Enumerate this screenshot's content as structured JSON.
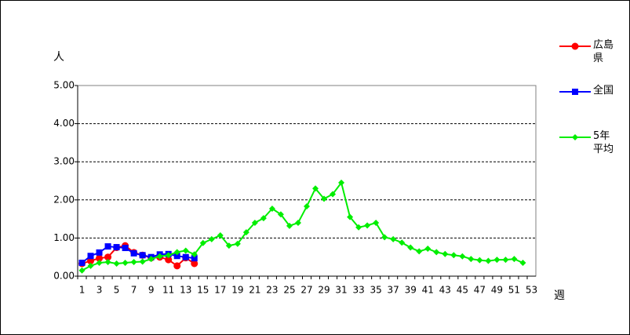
{
  "chart_data": {
    "type": "line",
    "y_label": "人",
    "x_label": "週",
    "categories": [
      1,
      null,
      3,
      null,
      5,
      null,
      7,
      null,
      9,
      null,
      11,
      null,
      13,
      null,
      15,
      null,
      17,
      null,
      19,
      null,
      21,
      null,
      23,
      null,
      25,
      null,
      27,
      null,
      29,
      null,
      31,
      null,
      33,
      null,
      35,
      null,
      37,
      null,
      39,
      null,
      41,
      null,
      43,
      null,
      45,
      null,
      47,
      null,
      49,
      null,
      51,
      null,
      53
    ],
    "series": [
      {
        "name": "広島県",
        "color": "#ff0000",
        "marker": "circle",
        "values": [
          0.33,
          0.4,
          0.47,
          0.5,
          0.75,
          0.8,
          0.62,
          0.55,
          0.48,
          0.5,
          0.43,
          0.27,
          0.48,
          0.33,
          null,
          null,
          null,
          null,
          null,
          null,
          null,
          null,
          null,
          null,
          null,
          null,
          null,
          null,
          null,
          null,
          null,
          null,
          null,
          null,
          null,
          null,
          null,
          null,
          null,
          null,
          null,
          null,
          null,
          null,
          null,
          null,
          null,
          null,
          null,
          null,
          null,
          null,
          null
        ]
      },
      {
        "name": "全国",
        "color": "#0000ff",
        "marker": "square",
        "values": [
          0.35,
          0.53,
          0.62,
          0.78,
          0.76,
          0.74,
          0.6,
          0.55,
          0.5,
          0.57,
          0.58,
          0.53,
          0.5,
          0.47,
          null,
          null,
          null,
          null,
          null,
          null,
          null,
          null,
          null,
          null,
          null,
          null,
          null,
          null,
          null,
          null,
          null,
          null,
          null,
          null,
          null,
          null,
          null,
          null,
          null,
          null,
          null,
          null,
          null,
          null,
          null,
          null,
          null,
          null,
          null,
          null,
          null,
          null,
          null
        ]
      },
      {
        "name": "5年平均",
        "color": "#00ee00",
        "marker": "diamond",
        "values": [
          0.15,
          0.27,
          0.35,
          0.37,
          0.33,
          0.35,
          0.37,
          0.38,
          0.45,
          0.52,
          0.55,
          0.63,
          0.67,
          0.57,
          0.87,
          0.97,
          1.07,
          0.8,
          0.85,
          1.15,
          1.4,
          1.52,
          1.77,
          1.62,
          1.32,
          1.4,
          1.83,
          2.3,
          2.03,
          2.15,
          2.45,
          1.55,
          1.28,
          1.33,
          1.4,
          1.02,
          0.97,
          0.88,
          0.75,
          0.65,
          0.72,
          0.63,
          0.58,
          0.55,
          0.52,
          0.45,
          0.42,
          0.4,
          0.43,
          0.43,
          0.45,
          0.35,
          null
        ]
      }
    ],
    "ylim": [
      0,
      5
    ],
    "yticks": [
      {
        "value": 0,
        "label": "0.00"
      },
      {
        "value": 1,
        "label": "1.00"
      },
      {
        "value": 2,
        "label": "2.00"
      },
      {
        "value": 3,
        "label": "3.00"
      },
      {
        "value": 4,
        "label": "4.00"
      },
      {
        "value": 5,
        "label": "5.00"
      }
    ],
    "grid": true,
    "legend": "right"
  }
}
